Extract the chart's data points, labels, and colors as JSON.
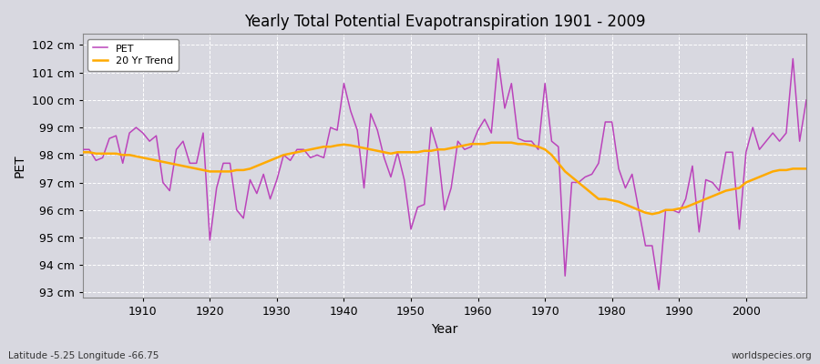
{
  "title": "Yearly Total Potential Evapotranspiration 1901 - 2009",
  "ylabel": "PET",
  "xlabel": "Year",
  "bottom_left": "Latitude -5.25 Longitude -66.75",
  "bottom_right": "worldspecies.org",
  "pet_color": "#bb44bb",
  "trend_color": "#ffaa00",
  "fig_bg": "#d8d8e0",
  "plot_bg": "#d8d8e0",
  "ylim": [
    92.8,
    102.4
  ],
  "xlim": [
    1901,
    2009
  ],
  "yticks": [
    93,
    94,
    95,
    96,
    97,
    98,
    99,
    100,
    101,
    102
  ],
  "xticks": [
    1910,
    1920,
    1930,
    1940,
    1950,
    1960,
    1970,
    1980,
    1990,
    2000
  ],
  "years": [
    1901,
    1902,
    1903,
    1904,
    1905,
    1906,
    1907,
    1908,
    1909,
    1910,
    1911,
    1912,
    1913,
    1914,
    1915,
    1916,
    1917,
    1918,
    1919,
    1920,
    1921,
    1922,
    1923,
    1924,
    1925,
    1926,
    1927,
    1928,
    1929,
    1930,
    1931,
    1932,
    1933,
    1934,
    1935,
    1936,
    1937,
    1938,
    1939,
    1940,
    1941,
    1942,
    1943,
    1944,
    1945,
    1946,
    1947,
    1948,
    1949,
    1950,
    1951,
    1952,
    1953,
    1954,
    1955,
    1956,
    1957,
    1958,
    1959,
    1960,
    1961,
    1962,
    1963,
    1964,
    1965,
    1966,
    1967,
    1968,
    1969,
    1970,
    1971,
    1972,
    1973,
    1974,
    1975,
    1976,
    1977,
    1978,
    1979,
    1980,
    1981,
    1982,
    1983,
    1984,
    1985,
    1986,
    1987,
    1988,
    1989,
    1990,
    1991,
    1992,
    1993,
    1994,
    1995,
    1996,
    1997,
    1998,
    1999,
    2000,
    2001,
    2002,
    2003,
    2004,
    2005,
    2006,
    2007,
    2008,
    2009
  ],
  "pet": [
    98.2,
    98.2,
    97.8,
    97.9,
    98.6,
    98.7,
    97.7,
    98.8,
    99.0,
    98.8,
    98.5,
    98.7,
    97.0,
    96.7,
    98.2,
    98.5,
    97.7,
    97.7,
    98.8,
    94.9,
    96.8,
    97.7,
    97.7,
    96.0,
    95.7,
    97.1,
    96.6,
    97.3,
    96.4,
    97.1,
    98.0,
    97.8,
    98.2,
    98.2,
    97.9,
    98.0,
    97.9,
    99.0,
    98.9,
    100.6,
    99.6,
    98.9,
    96.8,
    99.5,
    98.9,
    97.9,
    97.2,
    98.1,
    97.1,
    95.3,
    96.1,
    96.2,
    99.0,
    98.2,
    96.0,
    96.8,
    98.5,
    98.2,
    98.3,
    98.9,
    99.3,
    98.8,
    101.5,
    99.7,
    100.6,
    98.6,
    98.5,
    98.5,
    98.2,
    100.6,
    98.5,
    98.3,
    93.6,
    97.0,
    97.0,
    97.2,
    97.3,
    97.7,
    99.2,
    99.2,
    97.5,
    96.8,
    97.3,
    96.0,
    94.7,
    94.7,
    93.1,
    96.0,
    96.0,
    95.9,
    96.4,
    97.6,
    95.2,
    97.1,
    97.0,
    96.7,
    98.1,
    98.1,
    95.3,
    98.1,
    99.0,
    98.2,
    98.5,
    98.8,
    98.5,
    98.8,
    101.5,
    98.5,
    100.0
  ],
  "trend": [
    98.1,
    98.1,
    98.05,
    98.05,
    98.05,
    98.05,
    98.0,
    98.0,
    97.95,
    97.9,
    97.85,
    97.8,
    97.75,
    97.7,
    97.65,
    97.6,
    97.55,
    97.5,
    97.45,
    97.4,
    97.4,
    97.4,
    97.4,
    97.45,
    97.45,
    97.5,
    97.6,
    97.7,
    97.8,
    97.9,
    98.0,
    98.05,
    98.1,
    98.15,
    98.2,
    98.25,
    98.3,
    98.3,
    98.35,
    98.38,
    98.35,
    98.3,
    98.25,
    98.2,
    98.15,
    98.1,
    98.05,
    98.1,
    98.1,
    98.1,
    98.1,
    98.15,
    98.15,
    98.2,
    98.2,
    98.25,
    98.3,
    98.35,
    98.4,
    98.4,
    98.4,
    98.45,
    98.45,
    98.45,
    98.45,
    98.4,
    98.4,
    98.35,
    98.3,
    98.2,
    98.0,
    97.7,
    97.4,
    97.2,
    97.0,
    96.8,
    96.6,
    96.4,
    96.4,
    96.35,
    96.3,
    96.2,
    96.1,
    96.0,
    95.9,
    95.85,
    95.9,
    96.0,
    96.0,
    96.05,
    96.1,
    96.2,
    96.3,
    96.4,
    96.5,
    96.6,
    96.7,
    96.75,
    96.8,
    97.0,
    97.1,
    97.2,
    97.3,
    97.4,
    97.45,
    97.45,
    97.5,
    97.5,
    97.5
  ]
}
